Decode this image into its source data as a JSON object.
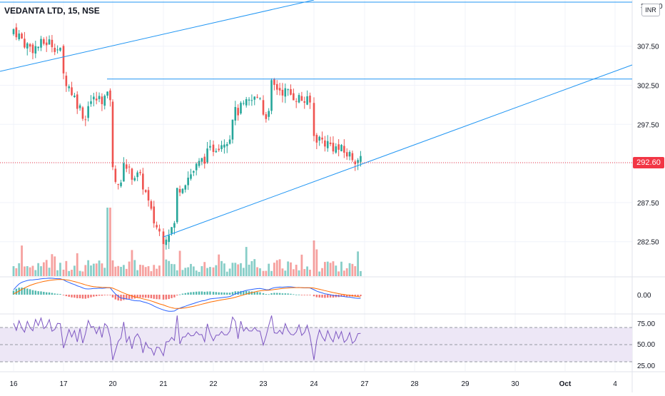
{
  "header": {
    "symbol_label": "VEDANTA LTD, 15, NSE",
    "currency_badge": "INR",
    "last_price": "292.60",
    "top_axis_label": "312.50"
  },
  "colors": {
    "up": "#26a69a",
    "down": "#ef5350",
    "trendline": "#2196f3",
    "macd_line": "#2962ff",
    "signal_line": "#ff6d00",
    "rsi_line": "#7e57c2",
    "rsi_band": "#ede7f6",
    "price_tag": "#f23645"
  },
  "chart_data": [
    {
      "type": "candlestick",
      "title": "VEDANTA LTD, 15, NSE",
      "y_axis_ticks": [
        "307.50",
        "302.50",
        "297.50",
        "292.60",
        "287.50",
        "282.50"
      ],
      "x_axis_ticks": [
        "16",
        "17",
        "20",
        "21",
        "22",
        "23",
        "24",
        "27",
        "28",
        "29",
        "30",
        "Oct",
        "4"
      ],
      "ylim": [
        279,
        312.5
      ],
      "last_price": 292.6,
      "key_points": [
        {
          "label": "16",
          "close": 309
        },
        {
          "label": "17",
          "close": 306.5
        },
        {
          "label": "20",
          "close": 299.5
        },
        {
          "label": "21",
          "close": 287
        },
        {
          "label": "22",
          "close": 294.5
        },
        {
          "label": "23",
          "close": 299
        },
        {
          "label": "24",
          "close": 296
        },
        {
          "label": "27",
          "close": 292.6
        }
      ],
      "horizontal_line_level": 303.3
    },
    {
      "type": "bar",
      "title": "Volume",
      "series": [
        {
          "name": "volume"
        }
      ]
    },
    {
      "type": "line",
      "title": "MACD",
      "y_axis_ticks": [
        "0.00"
      ]
    },
    {
      "type": "line",
      "title": "RSI",
      "y_axis_ticks": [
        "75.00",
        "50.00",
        "25.00"
      ],
      "band": [
        30,
        70
      ]
    }
  ]
}
